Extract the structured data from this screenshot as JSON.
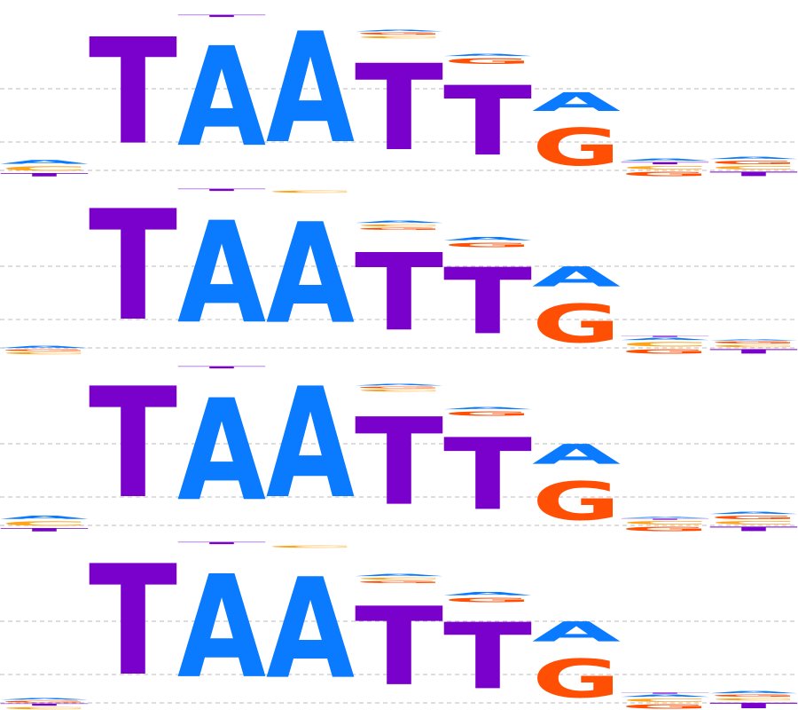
{
  "colors": {
    "A": "#0a7aff",
    "C": "#ffa51a",
    "G": "#ff4f05",
    "T": "#7a00cc",
    "gridline": "#bbbbbb"
  },
  "logos": [
    {
      "positions": [
        [
          [
            "T",
            0.03
          ],
          [
            "C",
            0.04
          ],
          [
            "A",
            0.035
          ]
        ],
        [
          [
            "T",
            0.96
          ]
        ],
        [
          [
            "A",
            0.9
          ],
          [
            "T",
            0.02
          ]
        ],
        [
          [
            "A",
            1.0
          ]
        ],
        [
          [
            "T",
            0.78
          ],
          [
            "C",
            0.02
          ],
          [
            "G",
            0.02
          ],
          [
            "A",
            0.015
          ]
        ],
        [
          [
            "T",
            0.63
          ],
          [
            "G",
            0.05
          ],
          [
            "A",
            0.02
          ]
        ],
        [
          [
            "G",
            0.34
          ],
          [
            "A",
            0.17
          ]
        ],
        [
          [
            "G",
            0.04
          ],
          [
            "C",
            0.03
          ],
          [
            "T",
            0.02
          ],
          [
            "A",
            0.02
          ]
        ],
        [
          [
            "T",
            0.04
          ],
          [
            "C",
            0.03
          ],
          [
            "G",
            0.03
          ],
          [
            "A",
            0.02
          ]
        ]
      ]
    },
    {
      "positions": [
        [
          [
            "C",
            0.02
          ],
          [
            "G",
            0.015
          ],
          [
            "A",
            0.02
          ]
        ],
        [
          [
            "T",
            1.0
          ]
        ],
        [
          [
            "A",
            0.92
          ],
          [
            "T",
            0.02
          ]
        ],
        [
          [
            "A",
            0.91
          ],
          [
            "C",
            0.02
          ]
        ],
        [
          [
            "T",
            0.7
          ],
          [
            "G",
            0.02
          ],
          [
            "C",
            0.02
          ],
          [
            "A",
            0.02
          ]
        ],
        [
          [
            "T",
            0.6
          ],
          [
            "G",
            0.04
          ],
          [
            "A",
            0.03
          ]
        ],
        [
          [
            "G",
            0.35
          ],
          [
            "A",
            0.18
          ]
        ],
        [
          [
            "G",
            0.04
          ],
          [
            "C",
            0.04
          ],
          [
            "A",
            0.02
          ],
          [
            "T",
            0.01
          ]
        ],
        [
          [
            "T",
            0.04
          ],
          [
            "C",
            0.02
          ],
          [
            "G",
            0.02
          ],
          [
            "A",
            0.01
          ]
        ]
      ]
    },
    {
      "positions": [
        [
          [
            "T",
            0.03
          ],
          [
            "C",
            0.04
          ],
          [
            "A",
            0.03
          ]
        ],
        [
          [
            "T",
            1.0
          ]
        ],
        [
          [
            "A",
            0.92
          ],
          [
            "T",
            0.02
          ]
        ],
        [
          [
            "A",
            1.0
          ]
        ],
        [
          [
            "T",
            0.79
          ],
          [
            "C",
            0.02
          ],
          [
            "G",
            0.015
          ],
          [
            "A",
            0.015
          ]
        ],
        [
          [
            "T",
            0.65
          ],
          [
            "G",
            0.04
          ],
          [
            "A",
            0.02
          ]
        ],
        [
          [
            "G",
            0.35
          ],
          [
            "A",
            0.18
          ]
        ],
        [
          [
            "G",
            0.04
          ],
          [
            "C",
            0.03
          ],
          [
            "T",
            0.01
          ],
          [
            "A",
            0.01
          ]
        ],
        [
          [
            "T",
            0.04
          ],
          [
            "C",
            0.03
          ],
          [
            "G",
            0.03
          ],
          [
            "A",
            0.02
          ]
        ]
      ]
    },
    {
      "positions": [
        [
          [
            "C",
            0.02
          ],
          [
            "T",
            0.02
          ],
          [
            "G",
            0.015
          ],
          [
            "A",
            0.015
          ]
        ],
        [
          [
            "T",
            1.0
          ]
        ],
        [
          [
            "A",
            0.93
          ],
          [
            "T",
            0.02
          ]
        ],
        [
          [
            "A",
            0.91
          ],
          [
            "C",
            0.02
          ]
        ],
        [
          [
            "T",
            0.71
          ],
          [
            "G",
            0.02
          ],
          [
            "C",
            0.02
          ],
          [
            "A",
            0.02
          ]
        ],
        [
          [
            "T",
            0.6
          ],
          [
            "G",
            0.04
          ],
          [
            "A",
            0.03
          ]
        ],
        [
          [
            "G",
            0.35
          ],
          [
            "A",
            0.18
          ]
        ],
        [
          [
            "G",
            0.04
          ],
          [
            "C",
            0.03
          ],
          [
            "A",
            0.02
          ],
          [
            "T",
            0.01
          ]
        ],
        [
          [
            "T",
            0.05
          ],
          [
            "C",
            0.02
          ],
          [
            "G",
            0.02
          ],
          [
            "A",
            0.02
          ]
        ]
      ]
    }
  ]
}
